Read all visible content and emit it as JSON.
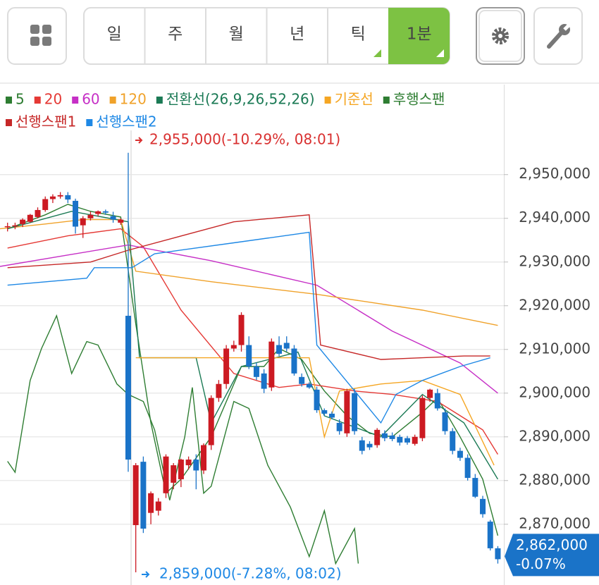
{
  "toolbar": {
    "tabs": [
      "일",
      "주",
      "월",
      "년",
      "틱",
      "1분"
    ]
  },
  "chart_data": {
    "type": "candlestick",
    "up_color": "#cc1a22",
    "down_color": "#1a73c8",
    "open": [
      2938000,
      2938200,
      2938700,
      2939200,
      2940300,
      2941900,
      2944400,
      2945000,
      2945300,
      2944000,
      2938400,
      2940000,
      2941000,
      2941600,
      2940500,
      2939000,
      2917700,
      2869800,
      2884300,
      2872600,
      2873100,
      2877100,
      2879500,
      2880300,
      2883500,
      2884800,
      2882300,
      2888100,
      2898900,
      2902100,
      2910200,
      2911000,
      2911000,
      2906100,
      2904500,
      2901300,
      2911000,
      2911500,
      2910200,
      2903700,
      2902100,
      2900800,
      2896100,
      2895300,
      2893200,
      2890800,
      2900000,
      2889200,
      2888400,
      2888100,
      2890800,
      2890300,
      2890000,
      2889700,
      2888400,
      2889700,
      2898900,
      2900000,
      2895600,
      2891300,
      2886800,
      2885200,
      2880600,
      2875800,
      2870600,
      2864500
    ],
    "high": [
      2939000,
      2939000,
      2940000,
      2941000,
      2942500,
      2945000,
      2945500,
      2946000,
      2946000,
      2944500,
      2940500,
      2941500,
      2941800,
      2942000,
      2941500,
      2940000,
      2955000,
      2884000,
      2885500,
      2877500,
      2876000,
      2886000,
      2884000,
      2885000,
      2885500,
      2886000,
      2888500,
      2899500,
      2903000,
      2911000,
      2912000,
      2918500,
      2913000,
      2907000,
      2905500,
      2912500,
      2913000,
      2913000,
      2911000,
      2904500,
      2902500,
      2901500,
      2896500,
      2895800,
      2894000,
      2901000,
      2901000,
      2890000,
      2889000,
      2892000,
      2891500,
      2891000,
      2890500,
      2890200,
      2890500,
      2899500,
      2901000,
      2901000,
      2896500,
      2892000,
      2887500,
      2886000,
      2881500,
      2876500,
      2871000,
      2865000
    ],
    "low": [
      2937000,
      2937500,
      2938000,
      2939000,
      2940000,
      2941500,
      2943500,
      2944500,
      2943500,
      2936500,
      2935500,
      2939500,
      2940500,
      2940800,
      2939000,
      2938500,
      2882000,
      2859000,
      2868000,
      2870000,
      2872000,
      2876000,
      2878000,
      2878500,
      2882500,
      2878000,
      2881500,
      2887000,
      2898000,
      2901000,
      2909500,
      2909500,
      2905500,
      2903000,
      2900000,
      2900500,
      2908500,
      2909500,
      2904000,
      2901500,
      2901000,
      2895500,
      2894800,
      2894000,
      2890500,
      2890000,
      2890500,
      2886000,
      2887000,
      2887500,
      2889000,
      2889000,
      2888000,
      2888200,
      2888000,
      2889000,
      2898000,
      2896000,
      2890500,
      2886000,
      2884500,
      2880000,
      2876000,
      2871500,
      2864000,
      2861000
    ],
    "close": [
      2938200,
      2938400,
      2939700,
      2940800,
      2941900,
      2944400,
      2945000,
      2945300,
      2944300,
      2938100,
      2940000,
      2940800,
      2941600,
      2941300,
      2939700,
      2939700,
      2884800,
      2883500,
      2869000,
      2877100,
      2875200,
      2885500,
      2883500,
      2884800,
      2884800,
      2882300,
      2888100,
      2898900,
      2902100,
      2910200,
      2911000,
      2917900,
      2906100,
      2903700,
      2901000,
      2911800,
      2909000,
      2910200,
      2904500,
      2902100,
      2901300,
      2896100,
      2895300,
      2894400,
      2891300,
      2900500,
      2891300,
      2886800,
      2887600,
      2891600,
      2889700,
      2889500,
      2888700,
      2888700,
      2890000,
      2898900,
      2900800,
      2896500,
      2891300,
      2886800,
      2885200,
      2880600,
      2876300,
      2872300,
      2864500,
      2862000
    ],
    "series": [
      {
        "name": "5",
        "color": "#2e7d32",
        "x": [
          0,
          5,
          8,
          11,
          15,
          17,
          19,
          21,
          23,
          27,
          31,
          34,
          36,
          39,
          42,
          45,
          48,
          51,
          55,
          57,
          60,
          63,
          65
        ],
        "values": [
          2937600,
          2940800,
          2943200,
          2941600,
          2940300,
          2915800,
          2893200,
          2877100,
          2880300,
          2890000,
          2906100,
          2906100,
          2910200,
          2907700,
          2900500,
          2894800,
          2890800,
          2890000,
          2895600,
          2898900,
          2890000,
          2880300,
          2867400
        ]
      },
      {
        "name": "20",
        "color": "#e53935",
        "x": [
          0,
          8,
          15,
          18,
          23,
          30,
          36,
          40,
          46,
          51,
          57,
          63,
          65
        ],
        "values": [
          2933200,
          2936000,
          2937600,
          2933500,
          2919000,
          2904500,
          2901300,
          2902100,
          2900500,
          2899700,
          2898100,
          2891600,
          2886000
        ]
      },
      {
        "name": "60",
        "color": "#c62fc6",
        "x": [
          -1,
          8,
          16,
          27,
          41,
          51,
          60,
          65
        ],
        "values": [
          2929000,
          2931600,
          2933900,
          2930300,
          2924700,
          2914200,
          2906900,
          2900000
        ]
      },
      {
        "name": "120",
        "color": "#f0a22a",
        "x": [
          -1,
          5,
          10,
          15,
          17,
          27,
          41,
          55,
          65
        ],
        "values": [
          2937600,
          2938700,
          2939700,
          2939700,
          2927900,
          2925500,
          2922600,
          2919000,
          2915500
        ]
      },
      {
        "name": "전환선(26,9,26,52,26)",
        "color": "#1b7a55",
        "x": [
          0,
          8.5,
          16,
          17.5,
          25,
          27,
          31,
          38.5,
          42,
          49.5,
          55,
          60.5,
          65
        ],
        "values": [
          2937600,
          2941600,
          2939200,
          2908100,
          2908100,
          2893200,
          2906100,
          2909400,
          2894800,
          2890000,
          2899700,
          2893200,
          2880300
        ]
      },
      {
        "name": "기준선",
        "color": "#f5a623",
        "x": [
          17,
          40,
          42,
          44,
          49.5,
          55,
          60,
          64.5
        ],
        "values": [
          2908100,
          2908100,
          2890000,
          2900500,
          2902100,
          2902900,
          2899700,
          2883500
        ]
      },
      {
        "name": "후행스팬",
        "color": "#2e7d32",
        "x": [
          0,
          1,
          3,
          4.5,
          6.5,
          8.5,
          10.5,
          12,
          14.5,
          16,
          18,
          19.5,
          21.5,
          23.5,
          24.5,
          26,
          27,
          30,
          32,
          34.5,
          37.5,
          40,
          42,
          43.5,
          46,
          46.5
        ],
        "values": [
          2884400,
          2881900,
          2902900,
          2910200,
          2917700,
          2904500,
          2911800,
          2911000,
          2902100,
          2899700,
          2898100,
          2891600,
          2875500,
          2890000,
          2901300,
          2877100,
          2878700,
          2898100,
          2896500,
          2883500,
          2873900,
          2862600,
          2873100,
          2861000,
          2869000,
          2861000
        ]
      },
      {
        "name": "선행스팬1",
        "color": "#c62828",
        "x": [
          0,
          11,
          16,
          30,
          40,
          41.5,
          49.5,
          55,
          60.5,
          64
        ],
        "values": [
          2928700,
          2930000,
          2932700,
          2939200,
          2940800,
          2911000,
          2907700,
          2908100,
          2908500,
          2908500
        ]
      },
      {
        "name": "선행스팬2",
        "color": "#1e88e5",
        "x": [
          0,
          10.5,
          11.5,
          16.5,
          19.5,
          30,
          40,
          41,
          49.5,
          51.5,
          55,
          60,
          64
        ],
        "values": [
          2924700,
          2926300,
          2928700,
          2928700,
          2931900,
          2934400,
          2936800,
          2911000,
          2893200,
          2899700,
          2902900,
          2906100,
          2908100
        ]
      }
    ],
    "xlim": [
      -1,
      65.8
    ],
    "ylim": [
      2856100,
      2970600
    ],
    "yticks": [
      {
        "value": 2870000,
        "label": "2,870,000"
      },
      {
        "value": 2880000,
        "label": "2,880,000"
      },
      {
        "value": 2890000,
        "label": "2,890,000"
      },
      {
        "value": 2900000,
        "label": "2,900,000"
      },
      {
        "value": 2910000,
        "label": "2,910,000"
      },
      {
        "value": 2920000,
        "label": "2,920,000"
      },
      {
        "value": 2930000,
        "label": "2,930,000"
      },
      {
        "value": 2940000,
        "label": "2,940,000"
      },
      {
        "value": 2950000,
        "label": "2,950,000"
      }
    ],
    "grid": true,
    "annotations": [
      "2,955,000(-10.29%, 08:01)",
      "2,859,000(-7.28%, 08:02)"
    ],
    "last_price": {
      "value": 2862000,
      "label": "2,862,000",
      "change": "-0.07%",
      "color": "#1a73c8"
    }
  }
}
